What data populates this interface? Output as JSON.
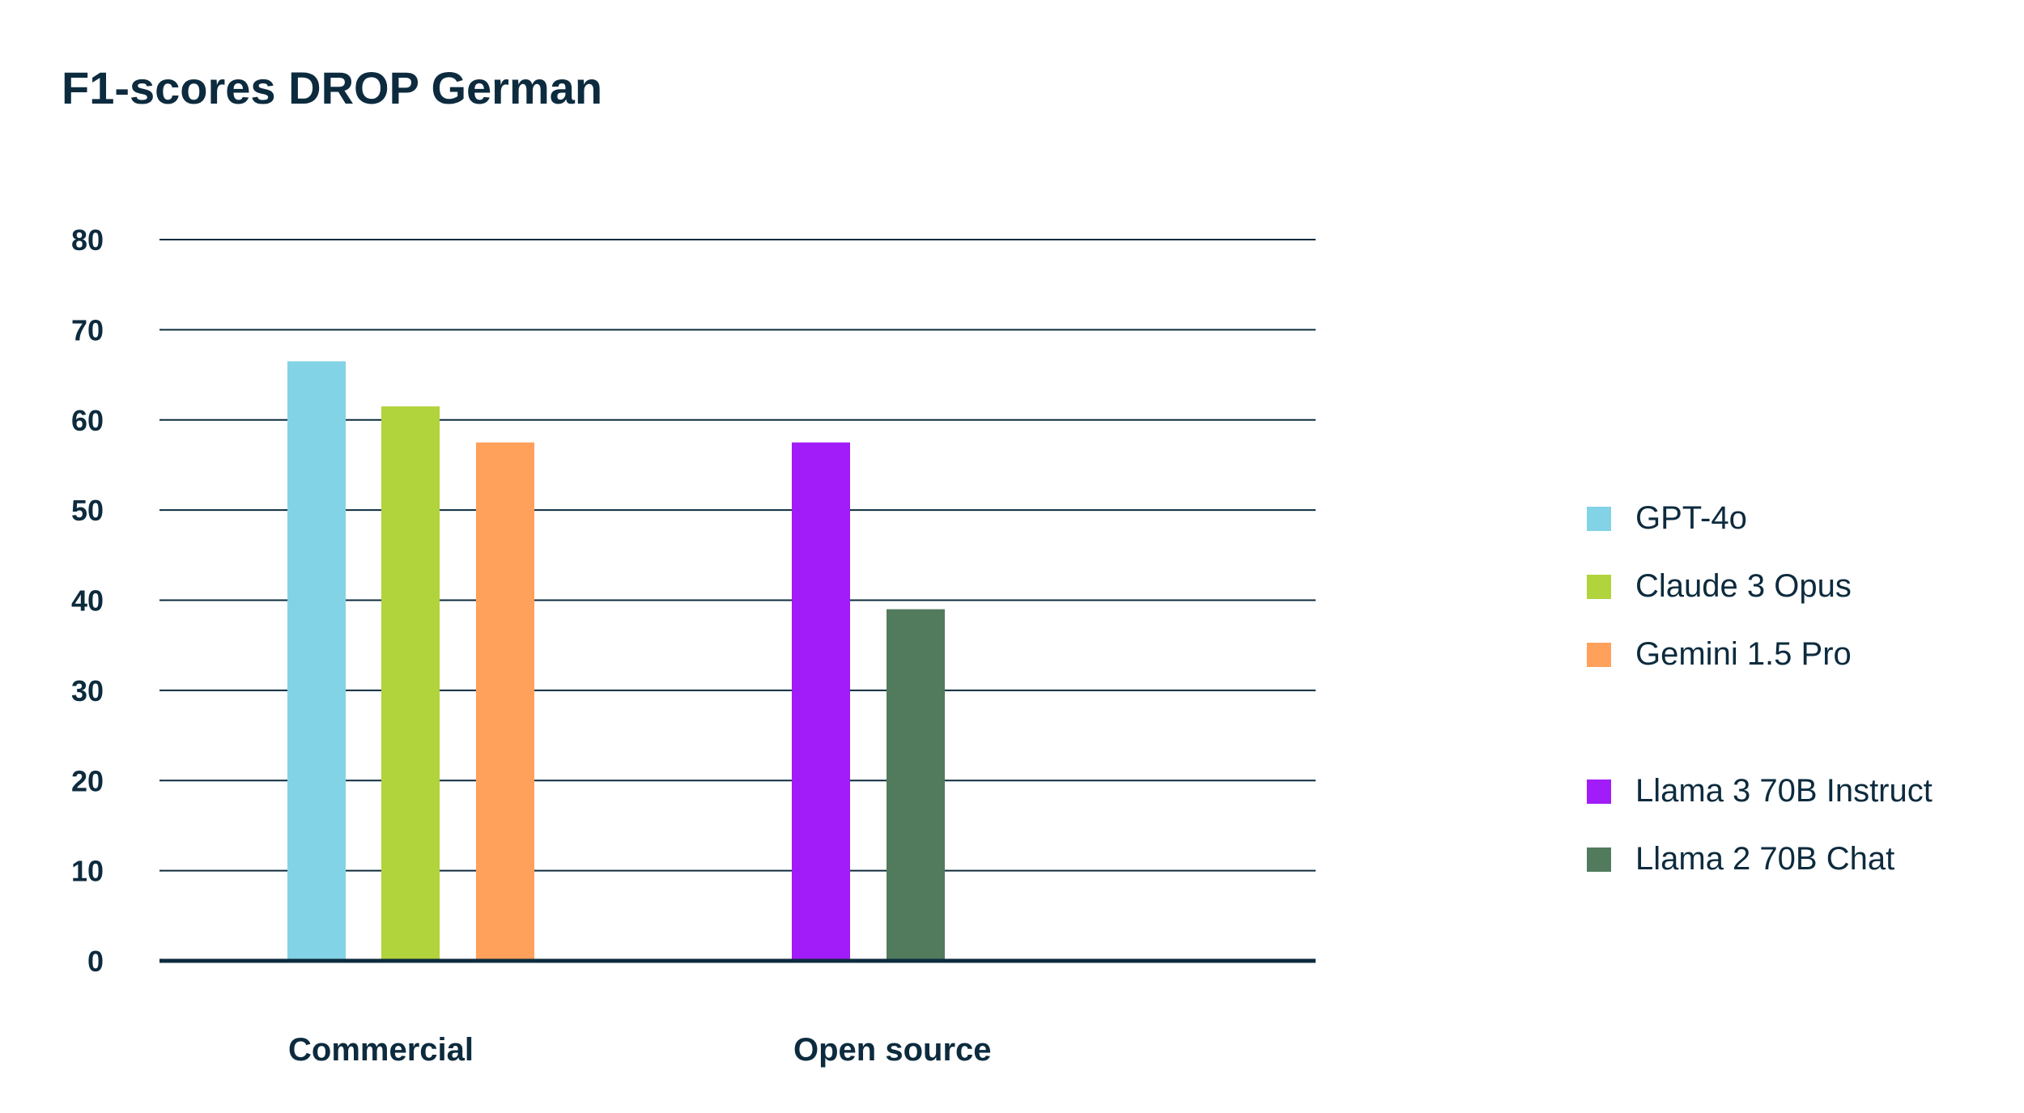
{
  "chart_data": {
    "type": "bar",
    "title": "F1-scores DROP German",
    "xlabel": "",
    "ylabel": "",
    "ylim": [
      0,
      80
    ],
    "yticks": [
      "0",
      "10",
      "20",
      "30",
      "40",
      "50",
      "60",
      "70",
      "80"
    ],
    "grid": true,
    "legend_position": "right",
    "categories": [
      "Commercial",
      "Open source"
    ],
    "series": [
      {
        "name": "GPT-4o",
        "category": "Commercial",
        "value": 66.5,
        "color": "#83d3e6"
      },
      {
        "name": "Claude 3 Opus",
        "category": "Commercial",
        "value": 61.5,
        "color": "#b1d33c"
      },
      {
        "name": "Gemini 1.5 Pro",
        "category": "Commercial",
        "value": 57.5,
        "color": "#ffa05b"
      },
      {
        "name": "Llama 3 70B Instruct",
        "category": "Open source",
        "value": 57.5,
        "color": "#a11cf8"
      },
      {
        "name": "Llama 2 70B Chat",
        "category": "Open source",
        "value": 39,
        "color": "#527b5e"
      }
    ],
    "colors": {
      "text": "#0d2b3e",
      "axis": "#0d2b3e",
      "grid": "#0d2b3e",
      "background": "#ffffff"
    }
  }
}
